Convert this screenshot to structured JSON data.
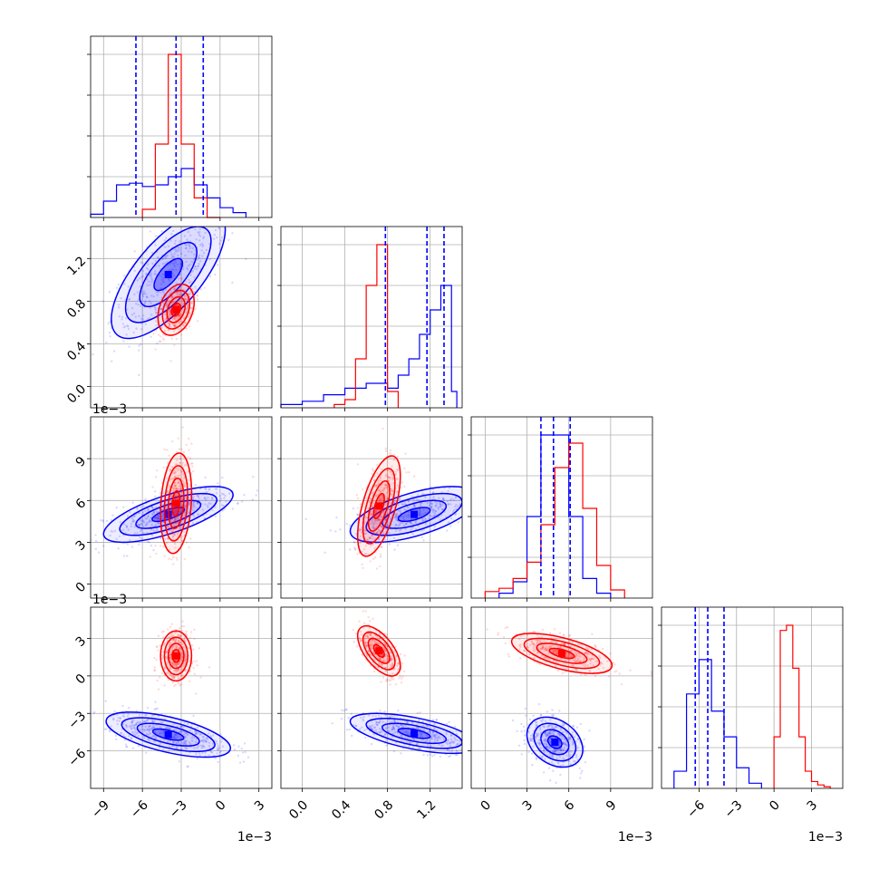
{
  "chart_data": {
    "type": "scatter",
    "title": "",
    "series": [
      {
        "color": "#ff0000"
      },
      {
        "color": "#0000ff"
      }
    ],
    "parameters": [
      {
        "xlim": [
          -10,
          4
        ],
        "ticks": [
          -9,
          -6,
          -3,
          0,
          3
        ],
        "tick_labels": [
          "−9",
          "−6",
          "−3",
          "0",
          "3"
        ],
        "offset_text": "1e−3"
      },
      {
        "xlim": [
          -0.2,
          1.5
        ],
        "ticks": [
          0.0,
          0.4,
          0.8,
          1.2
        ],
        "tick_labels": [
          "0.0",
          "0.4",
          "0.8",
          "1.2"
        ],
        "offset_text": "1e−3"
      },
      {
        "xlim": [
          -1,
          12
        ],
        "ticks": [
          0,
          3,
          6,
          9
        ],
        "tick_labels": [
          "0",
          "3",
          "6",
          "9"
        ],
        "offset_text": "1e−3"
      },
      {
        "xlim": [
          -9,
          5.5
        ],
        "ticks": [
          -6,
          -3,
          0,
          3
        ],
        "tick_labels": [
          "−6",
          "−3",
          "0",
          "3"
        ],
        "offset_text": "1e−3"
      }
    ],
    "histograms": [
      {
        "index": 0,
        "red": {
          "edges": [
            -6,
            -5,
            -4,
            -3,
            -2,
            -1,
            0
          ],
          "counts": [
            0.05,
            0.45,
            1.0,
            0.45,
            0.12,
            0.0
          ]
        },
        "blue": {
          "edges": [
            -10,
            -9,
            -8,
            -7,
            -6,
            -5,
            -4,
            -3,
            -2,
            -1,
            0,
            1,
            2
          ],
          "counts": [
            0.02,
            0.1,
            0.2,
            0.21,
            0.19,
            0.2,
            0.25,
            0.3,
            0.2,
            0.12,
            0.06,
            0.03
          ]
        },
        "quantile_lines": [
          -6.5,
          -3.4,
          -1.3
        ]
      },
      {
        "index": 1,
        "red": {
          "edges": [
            0.3,
            0.4,
            0.5,
            0.6,
            0.7,
            0.8,
            0.9
          ],
          "counts": [
            0.02,
            0.05,
            0.3,
            0.75,
            1.0,
            0.1
          ]
        },
        "blue": {
          "edges": [
            -0.2,
            0.0,
            0.2,
            0.4,
            0.6,
            0.8,
            0.9,
            1.0,
            1.1,
            1.2,
            1.3,
            1.4,
            1.45
          ],
          "counts": [
            0.02,
            0.04,
            0.08,
            0.12,
            0.15,
            0.12,
            0.2,
            0.3,
            0.45,
            0.6,
            0.75,
            0.1
          ]
        },
        "quantile_lines": [
          0.78,
          1.17,
          1.33
        ]
      },
      {
        "index": 2,
        "red": {
          "edges": [
            0,
            1,
            2,
            3,
            4,
            5,
            6,
            7,
            8,
            9,
            10
          ],
          "counts": [
            0.04,
            0.06,
            0.12,
            0.22,
            0.45,
            0.8,
            0.95,
            0.55,
            0.2,
            0.05
          ]
        },
        "blue": {
          "edges": [
            1,
            2,
            3,
            4,
            5,
            6,
            7,
            8,
            9
          ],
          "counts": [
            0.03,
            0.1,
            0.5,
            1.0,
            1.0,
            0.5,
            0.12,
            0.03
          ]
        },
        "quantile_lines": [
          4.0,
          4.9,
          6.1
        ]
      },
      {
        "index": 3,
        "red": {
          "edges": [
            0,
            0.5,
            1.0,
            1.5,
            2.0,
            2.5,
            3.0,
            3.5,
            4.0,
            4.5
          ],
          "counts": [
            0.3,
            0.92,
            0.95,
            0.7,
            0.3,
            0.1,
            0.04,
            0.02,
            0.01
          ]
        },
        "blue": {
          "edges": [
            -8,
            -7,
            -6,
            -5,
            -4,
            -3,
            -2,
            -1
          ],
          "counts": [
            0.1,
            0.55,
            0.75,
            0.45,
            0.3,
            0.12,
            0.03
          ]
        },
        "quantile_lines": [
          -6.3,
          -5.3,
          -4.0
        ]
      }
    ],
    "scatter_panels": [
      {
        "row": 1,
        "col": 0,
        "ylim": [
          -0.2,
          1.5
        ],
        "yticks": [
          0.0,
          0.4,
          0.8,
          1.2
        ],
        "ytick_labels": [
          "0.0",
          "0.4",
          "0.8",
          "1.2"
        ],
        "red": {
          "mean": [
            -3.4,
            0.72
          ],
          "std": [
            0.7,
            0.12
          ],
          "corr": 0.3
        },
        "blue": {
          "mean": [
            -4.0,
            1.05
          ],
          "std": [
            2.2,
            0.3
          ],
          "corr": 0.7
        }
      },
      {
        "row": 2,
        "col": 0,
        "ylim": [
          -1,
          12
        ],
        "yticks": [
          0,
          3,
          6,
          9
        ],
        "ytick_labels": [
          "0",
          "3",
          "6",
          "9"
        ],
        "red": {
          "mean": [
            -3.4,
            5.8
          ],
          "std": [
            0.6,
            1.8
          ],
          "corr": 0.2
        },
        "blue": {
          "mean": [
            -4.0,
            5.0
          ],
          "std": [
            2.5,
            1.0
          ],
          "corr": 0.7
        }
      },
      {
        "row": 2,
        "col": 1,
        "ylim": [
          -1,
          12
        ],
        "yticks": [],
        "ytick_labels": [],
        "red": {
          "mean": [
            0.72,
            5.6
          ],
          "std": [
            0.1,
            1.8
          ],
          "corr": 0.6
        },
        "blue": {
          "mean": [
            1.05,
            5.0
          ],
          "std": [
            0.3,
            1.0
          ],
          "corr": 0.6
        }
      },
      {
        "row": 3,
        "col": 0,
        "ylim": [
          -9,
          5.5
        ],
        "yticks": [
          -6,
          -3,
          0,
          3
        ],
        "ytick_labels": [
          "−6",
          "−3",
          "0",
          "3"
        ],
        "red": {
          "mean": [
            -3.4,
            1.6
          ],
          "std": [
            0.6,
            1.0
          ],
          "corr": 0.0
        },
        "blue": {
          "mean": [
            -4.0,
            -4.7
          ],
          "std": [
            2.4,
            0.9
          ],
          "corr": -0.6
        }
      },
      {
        "row": 3,
        "col": 1,
        "ylim": [
          -9,
          5.5
        ],
        "yticks": [],
        "ytick_labels": [],
        "red": {
          "mean": [
            0.72,
            2.0
          ],
          "std": [
            0.1,
            1.0
          ],
          "corr": -0.6
        },
        "blue": {
          "mean": [
            1.05,
            -4.6
          ],
          "std": [
            0.3,
            0.8
          ],
          "corr": -0.6
        }
      },
      {
        "row": 3,
        "col": 2,
        "ylim": [
          -9,
          5.5
        ],
        "yticks": [],
        "ytick_labels": [],
        "red": {
          "mean": [
            5.5,
            1.8
          ],
          "std": [
            1.8,
            0.8
          ],
          "corr": -0.6
        },
        "blue": {
          "mean": [
            5.0,
            -5.3
          ],
          "std": [
            1.0,
            1.0
          ],
          "corr": -0.3
        }
      }
    ],
    "offset_text_y": [
      {
        "row": 1,
        "text": "1e−3"
      },
      {
        "row": 2,
        "text": "1e−3"
      }
    ],
    "grid": true,
    "legend": "none"
  }
}
